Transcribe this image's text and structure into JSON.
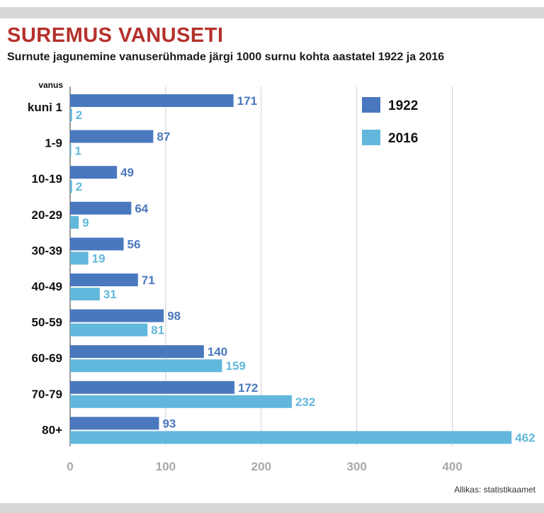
{
  "title": "SUREMUS VANUSETI",
  "subtitle": "Surnute jagunemine vanuserühmade järgi 1000 surnu kohta aastatel 1922 ja 2016",
  "source": "Allikas: statistikaamet",
  "chart_data": {
    "type": "bar",
    "orientation": "horizontal",
    "title": "SUREMUS VANUSETI",
    "subtitle": "Surnute jagunemine vanuserühmade järgi 1000 surnu kohta aastatel 1922 ja 2016",
    "ylabel": "vanus",
    "xlabel": "",
    "categories": [
      "kuni 1",
      "1-9",
      "10-19",
      "20-29",
      "30-39",
      "40-49",
      "50-59",
      "60-69",
      "70-79",
      "80+"
    ],
    "series": [
      {
        "name": "1922",
        "color": "#4a78bf",
        "values": [
          171,
          87,
          49,
          64,
          56,
          71,
          98,
          140,
          172,
          93
        ]
      },
      {
        "name": "2016",
        "color": "#62b7dc",
        "values": [
          2,
          1,
          2,
          9,
          19,
          31,
          81,
          159,
          232,
          462
        ]
      }
    ],
    "xlim": [
      0,
      470
    ],
    "xticks": [
      0,
      100,
      200,
      300,
      400
    ],
    "grid": true,
    "legend": "top-right"
  }
}
